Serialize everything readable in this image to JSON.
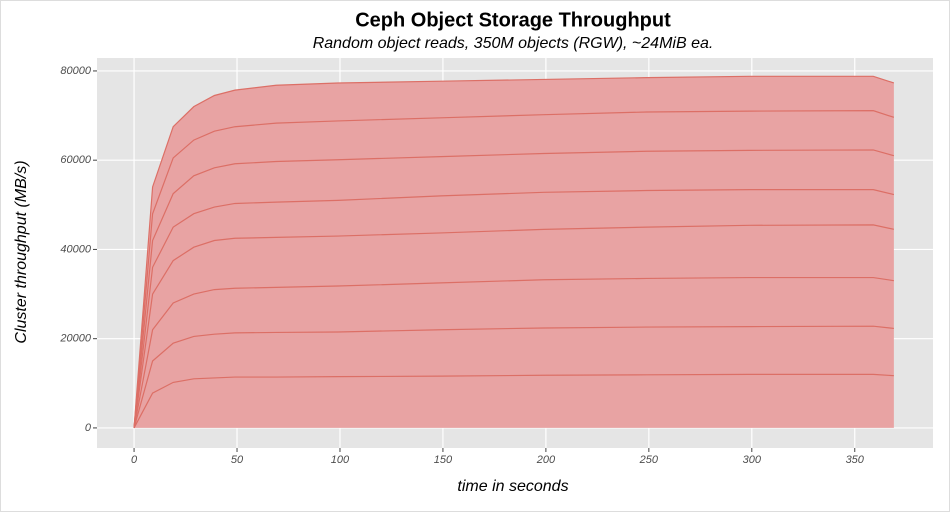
{
  "chart_data": {
    "type": "stacked_area",
    "title": "Ceph Object Storage Throughput",
    "subtitle": "Random object reads, 350M objects (RGW), ~24MiB ea.",
    "x_label": "time in seconds",
    "y_label": "Cluster throughput (MB/s)",
    "x": [
      0,
      9,
      19,
      29,
      39,
      49,
      69,
      99,
      149,
      199,
      249,
      299,
      359,
      369
    ],
    "series": [
      {
        "color": "#e8a3a3",
        "values": [
          0,
          7800,
          10200,
          11000,
          11200,
          11400,
          11400,
          11500,
          11600,
          11800,
          11900,
          12000,
          12000,
          11700
        ]
      },
      {
        "color": "#e8a3a3",
        "values": [
          0,
          7200,
          8800,
          9500,
          9800,
          9900,
          10000,
          10000,
          10400,
          10600,
          10700,
          10700,
          10800,
          10600
        ]
      },
      {
        "color": "#e8a3a3",
        "values": [
          0,
          7000,
          9000,
          9500,
          10000,
          10000,
          10100,
          10300,
          10500,
          10800,
          10900,
          11000,
          10900,
          10700
        ]
      },
      {
        "color": "#e8a3a3",
        "values": [
          0,
          8000,
          9500,
          10500,
          11000,
          11200,
          11200,
          11200,
          11200,
          11300,
          11500,
          11700,
          11800,
          11500
        ]
      },
      {
        "color": "#e8a3a3",
        "values": [
          0,
          6000,
          7500,
          7500,
          7500,
          7800,
          7900,
          8000,
          8300,
          8300,
          8200,
          8000,
          7900,
          7800
        ]
      },
      {
        "color": "#e8a3a3",
        "values": [
          0,
          6000,
          7500,
          8500,
          8800,
          8900,
          9100,
          9100,
          8800,
          8700,
          8800,
          8800,
          8900,
          8700
        ]
      },
      {
        "color": "#e8a3a3",
        "values": [
          0,
          6000,
          8000,
          8000,
          8200,
          8300,
          8600,
          8700,
          8700,
          8700,
          8800,
          8800,
          8800,
          8600
        ]
      },
      {
        "color": "#e8a3a3",
        "values": [
          0,
          6000,
          7000,
          7500,
          8000,
          8200,
          8500,
          8500,
          8200,
          7900,
          7700,
          7800,
          7700,
          7700
        ]
      }
    ],
    "line_color": "#dc6f66",
    "xlim": [
      -18,
      388
    ],
    "xticks": [
      0,
      50,
      100,
      150,
      200,
      250,
      300,
      350
    ],
    "ylim": [
      -4500,
      82900
    ],
    "yticks": [
      0,
      20000,
      40000,
      60000,
      80000
    ],
    "grid": true
  }
}
